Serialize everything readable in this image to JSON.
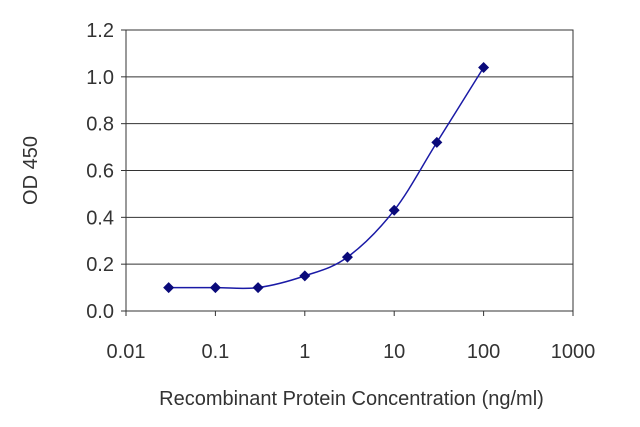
{
  "chart_data": {
    "type": "line",
    "title": "",
    "xlabel": "Recombinant Protein Concentration (ng/ml)",
    "ylabel": "OD 450",
    "x_scale": "log",
    "xlim": [
      0.01,
      1000
    ],
    "ylim": [
      0.0,
      1.2
    ],
    "x_ticks": [
      "0.01",
      "0.1",
      "1",
      "10",
      "100",
      "1000"
    ],
    "y_ticks": [
      "0.0",
      "0.2",
      "0.4",
      "0.6",
      "0.8",
      "1.0",
      "1.2"
    ],
    "grid": "horizontal",
    "legend": "none",
    "series": [
      {
        "x": [
          0.03,
          0.1,
          0.3,
          1,
          3,
          10,
          30,
          100
        ],
        "y": [
          0.1,
          0.1,
          0.1,
          0.15,
          0.23,
          0.43,
          0.72,
          1.04
        ],
        "color": "#1a1aa6",
        "marker": "diamond"
      }
    ],
    "colors": {
      "line": "#1a1aa6",
      "marker": "#0a0a7a",
      "grid": "#333333",
      "axis": "#333333"
    }
  }
}
